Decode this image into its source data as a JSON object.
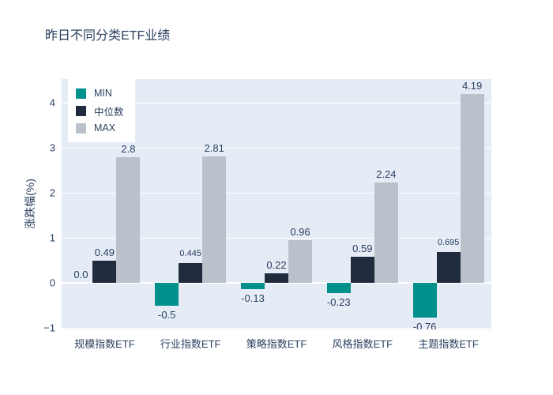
{
  "chart_data": {
    "type": "bar",
    "title": "昨日不同分类ETF业绩",
    "xlabel": "",
    "ylabel": "涨跌幅(%)",
    "categories": [
      "规模指数ETF",
      "行业指数ETF",
      "策略指数ETF",
      "风格指数ETF",
      "主题指数ETF"
    ],
    "series": [
      {
        "name": "MIN",
        "color": "#00918c",
        "values": [
          0.0,
          -0.5,
          -0.13,
          -0.23,
          -0.76
        ],
        "labels": [
          "0.0",
          "-0.5",
          "-0.13",
          "-0.23",
          "-0.76"
        ]
      },
      {
        "name": "中位数",
        "color": "#202b3d",
        "values": [
          0.49,
          0.445,
          0.22,
          0.59,
          0.695
        ],
        "labels": [
          "0.49",
          "0.445",
          "0.22",
          "0.59",
          "0.695"
        ]
      },
      {
        "name": "MAX",
        "color": "#bbc1cb",
        "values": [
          2.8,
          2.81,
          0.96,
          2.24,
          4.19
        ],
        "labels": [
          "2.8",
          "2.81",
          "0.96",
          "2.24",
          "4.19"
        ]
      }
    ],
    "yticks": [
      -1,
      0,
      1,
      2,
      3,
      4
    ],
    "ytick_labels": [
      "−1",
      "0",
      "1",
      "2",
      "3",
      "4"
    ],
    "ylim": [
      -1.03,
      4.53
    ],
    "grid": true,
    "legend_position": "top-left",
    "colors": {
      "plot_background": "#e5ecf6",
      "gridline": "#ffffff",
      "text": "#2a3f5f",
      "figure_background": "#ffffff"
    }
  }
}
